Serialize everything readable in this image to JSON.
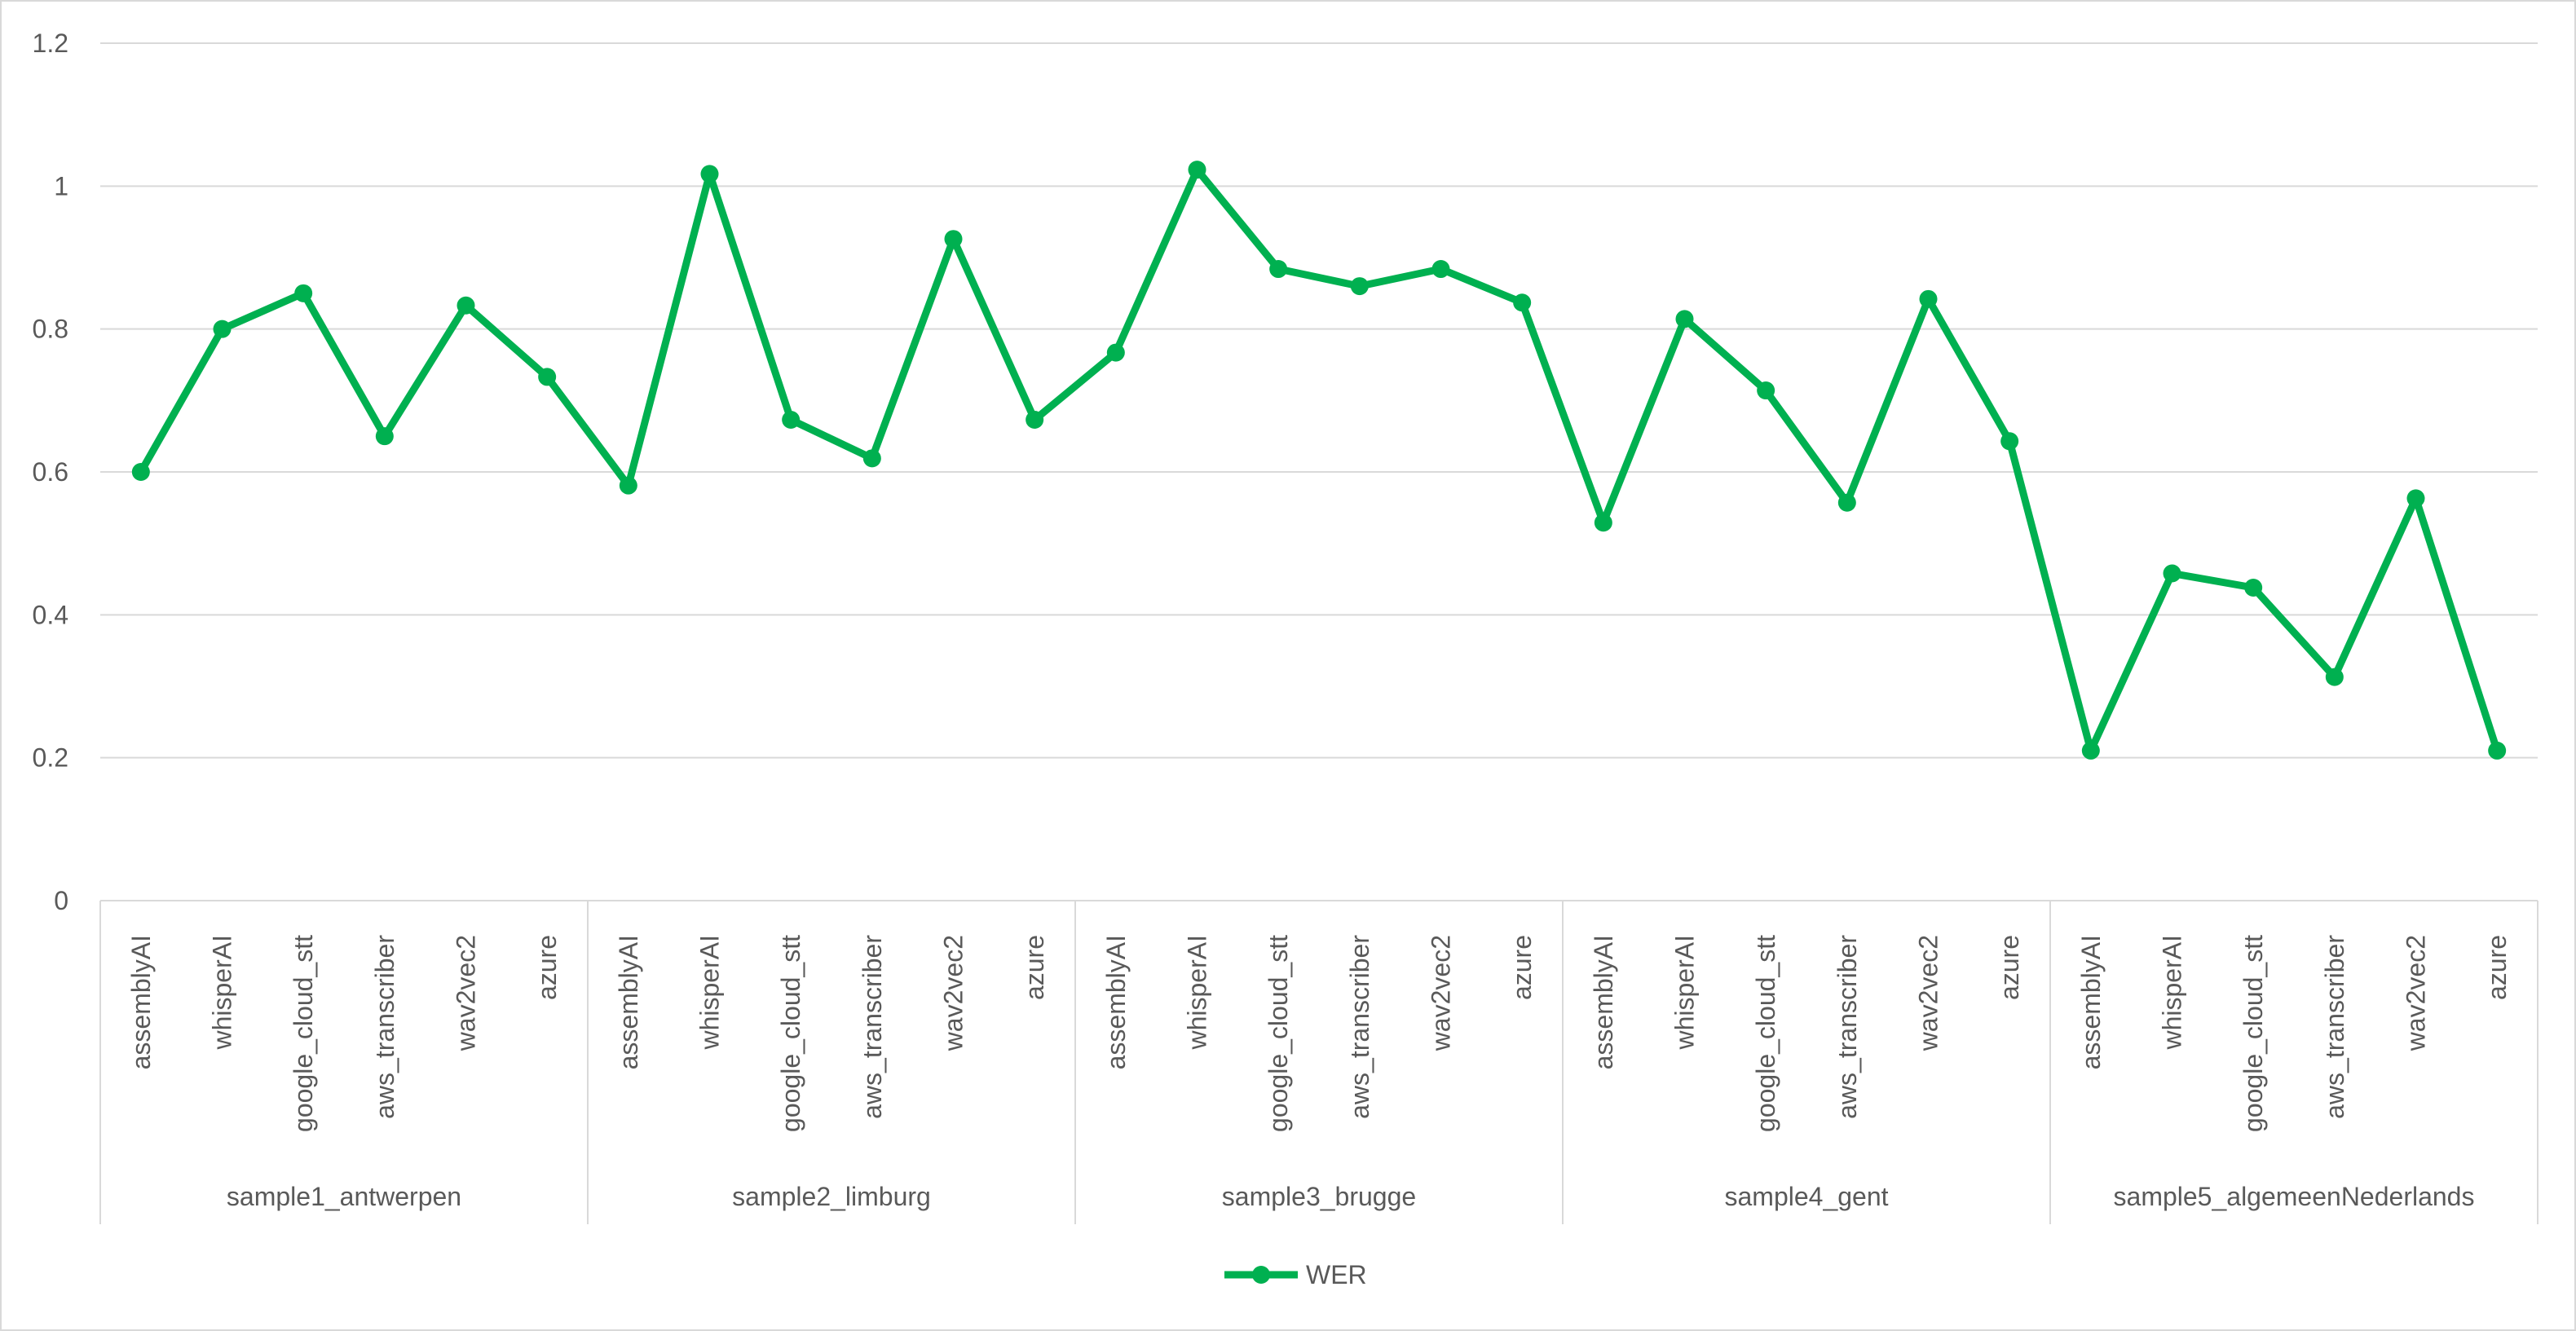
{
  "chart_data": {
    "type": "line",
    "title": "",
    "xlabel": "",
    "ylabel": "",
    "ylim": [
      0,
      1.2
    ],
    "yticks": [
      "0",
      "0.2",
      "0.4",
      "0.6",
      "0.8",
      "1",
      "1.2"
    ],
    "grid": true,
    "legend_position": "bottom",
    "groups": [
      {
        "name": "sample1_antwerpen",
        "categories": [
          "assemblyAI",
          "whisperAI",
          "google_cloud_stt",
          "aws_transcriber",
          "wav2vec2",
          "azure"
        ]
      },
      {
        "name": "sample2_limburg",
        "categories": [
          "assemblyAI",
          "whisperAI",
          "google_cloud_stt",
          "aws_transcriber",
          "wav2vec2",
          "azure"
        ]
      },
      {
        "name": "sample3_brugge",
        "categories": [
          "assemblyAI",
          "whisperAI",
          "google_cloud_stt",
          "aws_transcriber",
          "wav2vec2",
          "azure"
        ]
      },
      {
        "name": "sample4_gent",
        "categories": [
          "assemblyAI",
          "whisperAI",
          "google_cloud_stt",
          "aws_transcriber",
          "wav2vec2",
          "azure"
        ]
      },
      {
        "name": "sample5_algemeenNederlands",
        "categories": [
          "assemblyAI",
          "whisperAI",
          "google_cloud_stt",
          "aws_transcriber",
          "wav2vec2",
          "azure"
        ]
      }
    ],
    "series": [
      {
        "name": "WER",
        "color": "#00b050",
        "values": [
          0.6,
          0.8,
          0.85,
          0.65,
          0.833,
          0.733,
          0.581,
          1.017,
          0.673,
          0.619,
          0.926,
          0.673,
          0.767,
          1.023,
          0.884,
          0.86,
          0.884,
          0.837,
          0.529,
          0.814,
          0.714,
          0.557,
          0.842,
          0.643,
          0.21,
          0.458,
          0.438,
          0.313,
          0.563,
          0.21
        ]
      }
    ]
  }
}
